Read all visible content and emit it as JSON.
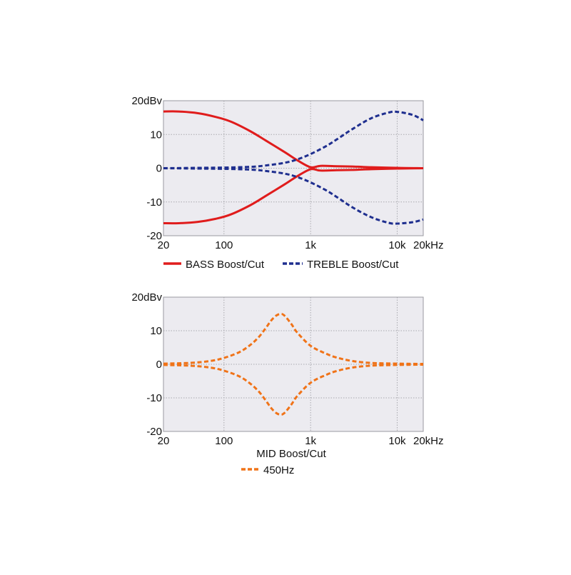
{
  "chart_data": [
    {
      "type": "line",
      "x_scale": "log",
      "xlim": [
        20,
        20000
      ],
      "ylim": [
        -20,
        20
      ],
      "x_ticks": [
        20,
        100,
        1000,
        10000,
        20000
      ],
      "x_tick_labels": [
        "20",
        "100",
        "1k",
        "10k",
        "20kHz"
      ],
      "y_ticks": [
        20,
        10,
        0,
        -10,
        -20
      ],
      "y_tick_labels": [
        "20dBv",
        "10",
        "0",
        "-10",
        "-20"
      ],
      "grid": true,
      "legend_position": "bottom",
      "series": [
        {
          "name": "BASS Boost/Cut",
          "color": "#e01c1c",
          "dash": "solid",
          "x": [
            20,
            30,
            50,
            80,
            120,
            200,
            300,
            500,
            700,
            1000,
            1300,
            2000,
            3000,
            5000,
            10000,
            20000
          ],
          "y": [
            16.8,
            16.8,
            16.3,
            15.2,
            13.8,
            11.0,
            8.3,
            4.8,
            2.4,
            0.3,
            0.7,
            0.6,
            0.5,
            0.3,
            0.1,
            0
          ]
        },
        {
          "name": "",
          "color": "#e01c1c",
          "dash": "solid",
          "x": [
            20,
            30,
            50,
            80,
            120,
            200,
            300,
            500,
            700,
            1000,
            1300,
            2000,
            3000,
            5000,
            10000,
            20000
          ],
          "y": [
            -16.3,
            -16.3,
            -15.9,
            -15.0,
            -13.7,
            -11.0,
            -8.3,
            -4.8,
            -2.4,
            -0.3,
            -0.7,
            -0.6,
            -0.5,
            -0.3,
            -0.1,
            0
          ]
        },
        {
          "name": "TREBLE Boost/Cut",
          "color": "#1f2f8f",
          "dash": "dashed",
          "x": [
            20,
            50,
            100,
            200,
            300,
            500,
            700,
            1000,
            1500,
            2000,
            3000,
            5000,
            8000,
            10000,
            15000,
            20000
          ],
          "y": [
            0,
            0.1,
            0.2,
            0.4,
            0.8,
            1.6,
            2.6,
            4.2,
            6.5,
            8.5,
            11.5,
            14.8,
            16.5,
            16.7,
            15.8,
            14.2
          ]
        },
        {
          "name": "",
          "color": "#1f2f8f",
          "dash": "dashed",
          "x": [
            20,
            50,
            100,
            200,
            300,
            500,
            700,
            1000,
            1500,
            2000,
            3000,
            5000,
            8000,
            10000,
            15000,
            20000
          ],
          "y": [
            0,
            -0.1,
            -0.2,
            -0.4,
            -0.8,
            -1.6,
            -2.6,
            -4.2,
            -6.5,
            -8.5,
            -11.5,
            -14.5,
            -16.2,
            -16.4,
            -16.0,
            -15.2
          ]
        }
      ]
    },
    {
      "type": "line",
      "x_scale": "log",
      "xlim": [
        20,
        20000
      ],
      "ylim": [
        -20,
        20
      ],
      "x_ticks": [
        20,
        100,
        1000,
        10000,
        20000
      ],
      "x_tick_labels": [
        "20",
        "100",
        "1k",
        "10k",
        "20kHz"
      ],
      "y_ticks": [
        20,
        10,
        0,
        -10,
        -20
      ],
      "y_tick_labels": [
        "20dBv",
        "10",
        "0",
        "-10",
        "-20"
      ],
      "grid": true,
      "title_below": "MID Boost/Cut",
      "legend_position": "bottom",
      "series": [
        {
          "name": "450Hz",
          "color": "#f07318",
          "dash": "dashed",
          "x": [
            20,
            40,
            70,
            100,
            150,
            200,
            250,
            300,
            350,
            400,
            450,
            500,
            600,
            700,
            1000,
            1500,
            2000,
            3000,
            5000,
            10000,
            20000
          ],
          "y": [
            0.2,
            0.4,
            1.0,
            1.9,
            3.6,
            5.7,
            8.0,
            10.6,
            13.0,
            14.5,
            15.0,
            14.5,
            12.0,
            9.5,
            5.5,
            3.2,
            2.0,
            1.0,
            0.4,
            0.2,
            0.1
          ]
        },
        {
          "name": "",
          "color": "#f07318",
          "dash": "dashed",
          "x": [
            20,
            40,
            70,
            100,
            150,
            200,
            250,
            300,
            350,
            400,
            450,
            500,
            600,
            700,
            1000,
            1500,
            2000,
            3000,
            5000,
            10000,
            20000
          ],
          "y": [
            -0.2,
            -0.4,
            -1.0,
            -1.9,
            -3.6,
            -5.7,
            -8.0,
            -10.6,
            -13.0,
            -14.5,
            -15.0,
            -14.5,
            -12.0,
            -9.5,
            -5.5,
            -3.2,
            -2.0,
            -1.0,
            -0.4,
            -0.2,
            -0.1
          ]
        }
      ]
    }
  ],
  "legend": {
    "bass_label": "BASS Boost/Cut",
    "treble_label": "TREBLE Boost/Cut",
    "mid_title": "MID Boost/Cut",
    "mid_label": "450Hz"
  }
}
